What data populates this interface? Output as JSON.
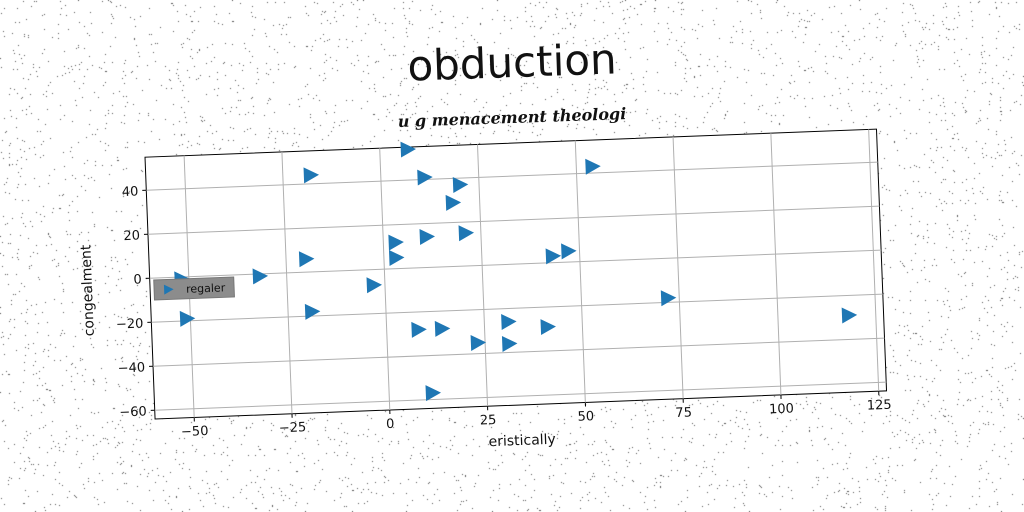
{
  "chart_data": {
    "type": "scatter",
    "title": "obduction",
    "subtitle": "u g menacement theologi",
    "xlabel": "eristically",
    "ylabel": "congealment",
    "xlim": [
      -60,
      127
    ],
    "ylim": [
      -64,
      55
    ],
    "xticks": [
      -50,
      -25,
      0,
      25,
      50,
      75,
      100,
      125
    ],
    "yticks": [
      -60,
      -40,
      -20,
      0,
      20,
      40
    ],
    "grid": true,
    "legend_position": "center-left",
    "marker": "triangle-right",
    "color": "#1f77b4",
    "series": [
      {
        "name": "regaler",
        "x": [
          7,
          -18,
          11,
          20,
          54,
          18,
          3,
          11,
          21,
          3,
          -20,
          -32,
          -52,
          -3,
          43,
          47,
          -51,
          -19,
          8,
          14,
          23,
          31,
          31,
          41,
          72,
          118,
          11,
          -52
        ],
        "y": [
          54,
          44,
          41,
          37,
          43,
          29,
          12,
          14,
          15,
          5,
          6,
          -1,
          -1,
          -7,
          3,
          5,
          -19,
          -18,
          -28,
          -28,
          -35,
          -26,
          -36,
          -29,
          -18,
          -29,
          -57,
          -1
        ]
      }
    ]
  }
}
